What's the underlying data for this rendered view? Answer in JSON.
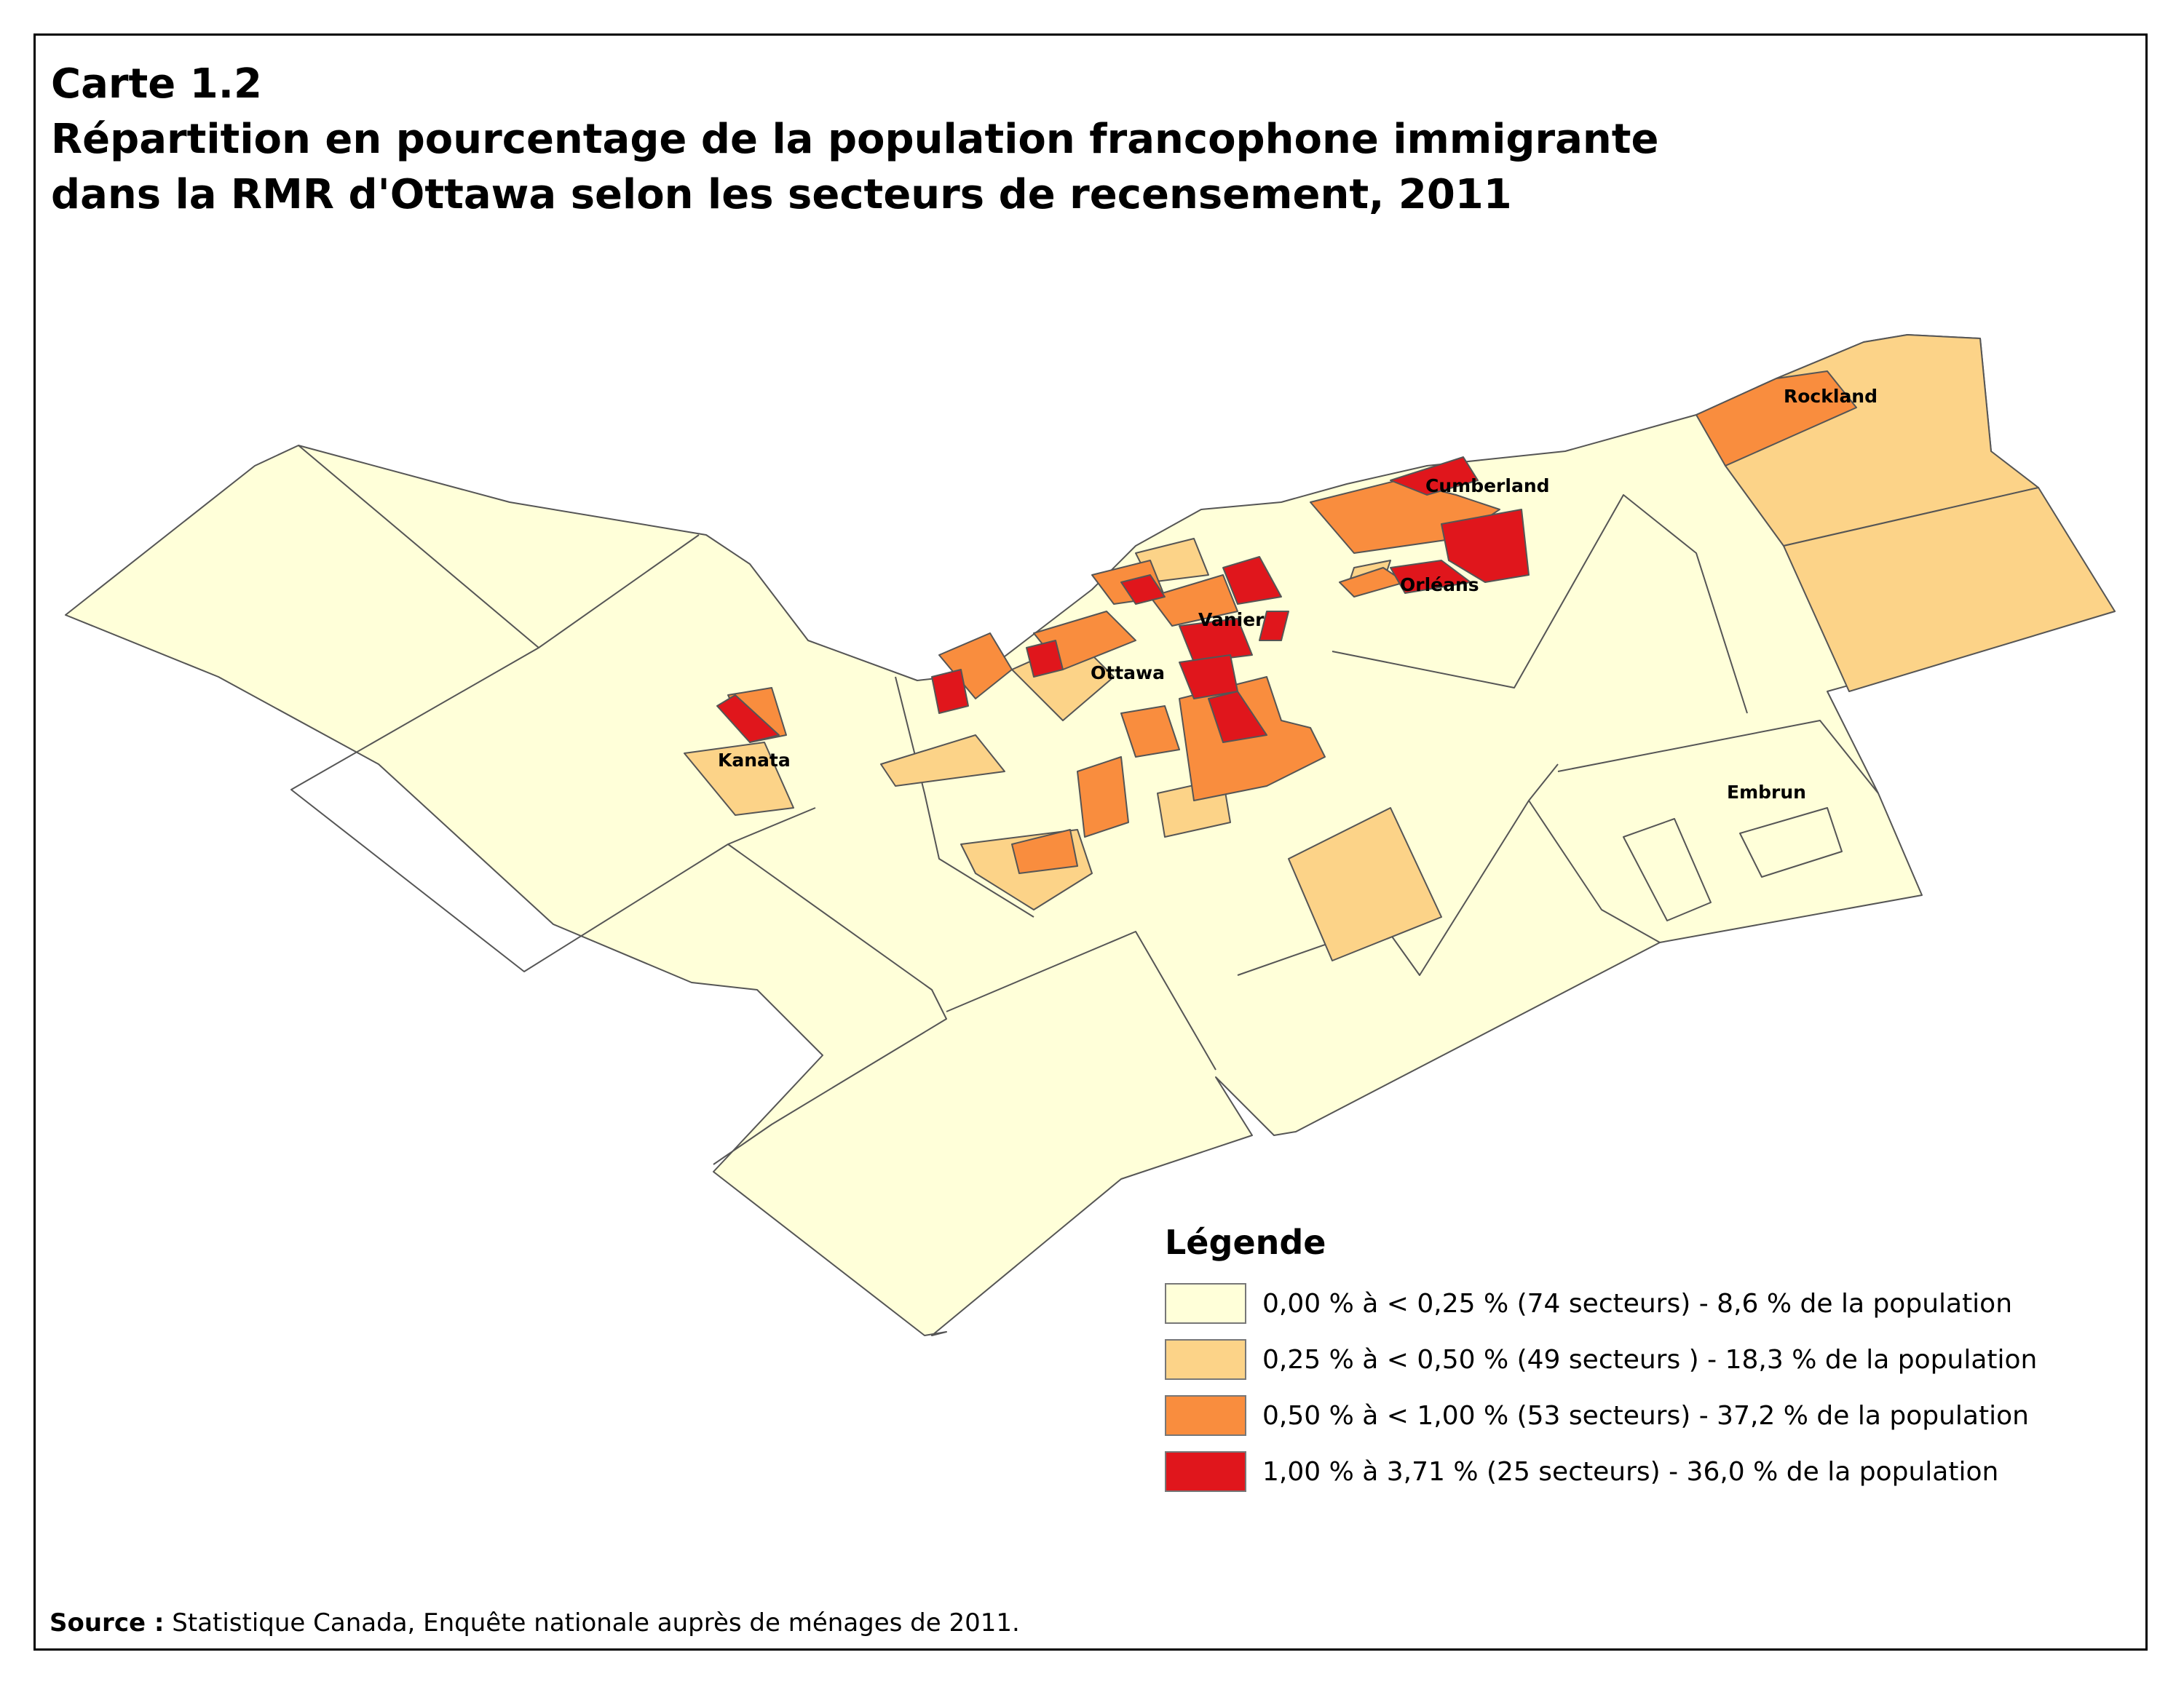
{
  "title": {
    "line1": "Carte 1.2",
    "line2": "Répartition en pourcentage de la population francophone immigrante",
    "line3": "dans la RMR d'Ottawa selon les secteurs de recensement, 2011"
  },
  "places": {
    "rockland": "Rockland",
    "cumberland": "Cumberland",
    "orleans": "Orléans",
    "vanier": "Vanier",
    "ottawa": "Ottawa",
    "kanata": "Kanata",
    "embrun": "Embrun"
  },
  "legend": {
    "title": "Légende",
    "items": [
      {
        "label": "0,00 % à < 0,25 % (74 secteurs) - 8,6 % de la population",
        "color": "#ffffd9"
      },
      {
        "label": "0,25 % à < 0,50 % (49 secteurs ) - 18,3 % de la population",
        "color": "#fcd388"
      },
      {
        "label": "0,50 % à < 1,00 % (53 secteurs) - 37,2 % de la population",
        "color": "#f98d3e"
      },
      {
        "label": "1,00 % à 3,71 % (25 secteurs) - 36,0 % de la population",
        "color": "#e0161c"
      }
    ]
  },
  "source": {
    "label": "Source :",
    "text": " Statistique Canada, Enquête nationale auprès de ménages de 2011."
  }
}
